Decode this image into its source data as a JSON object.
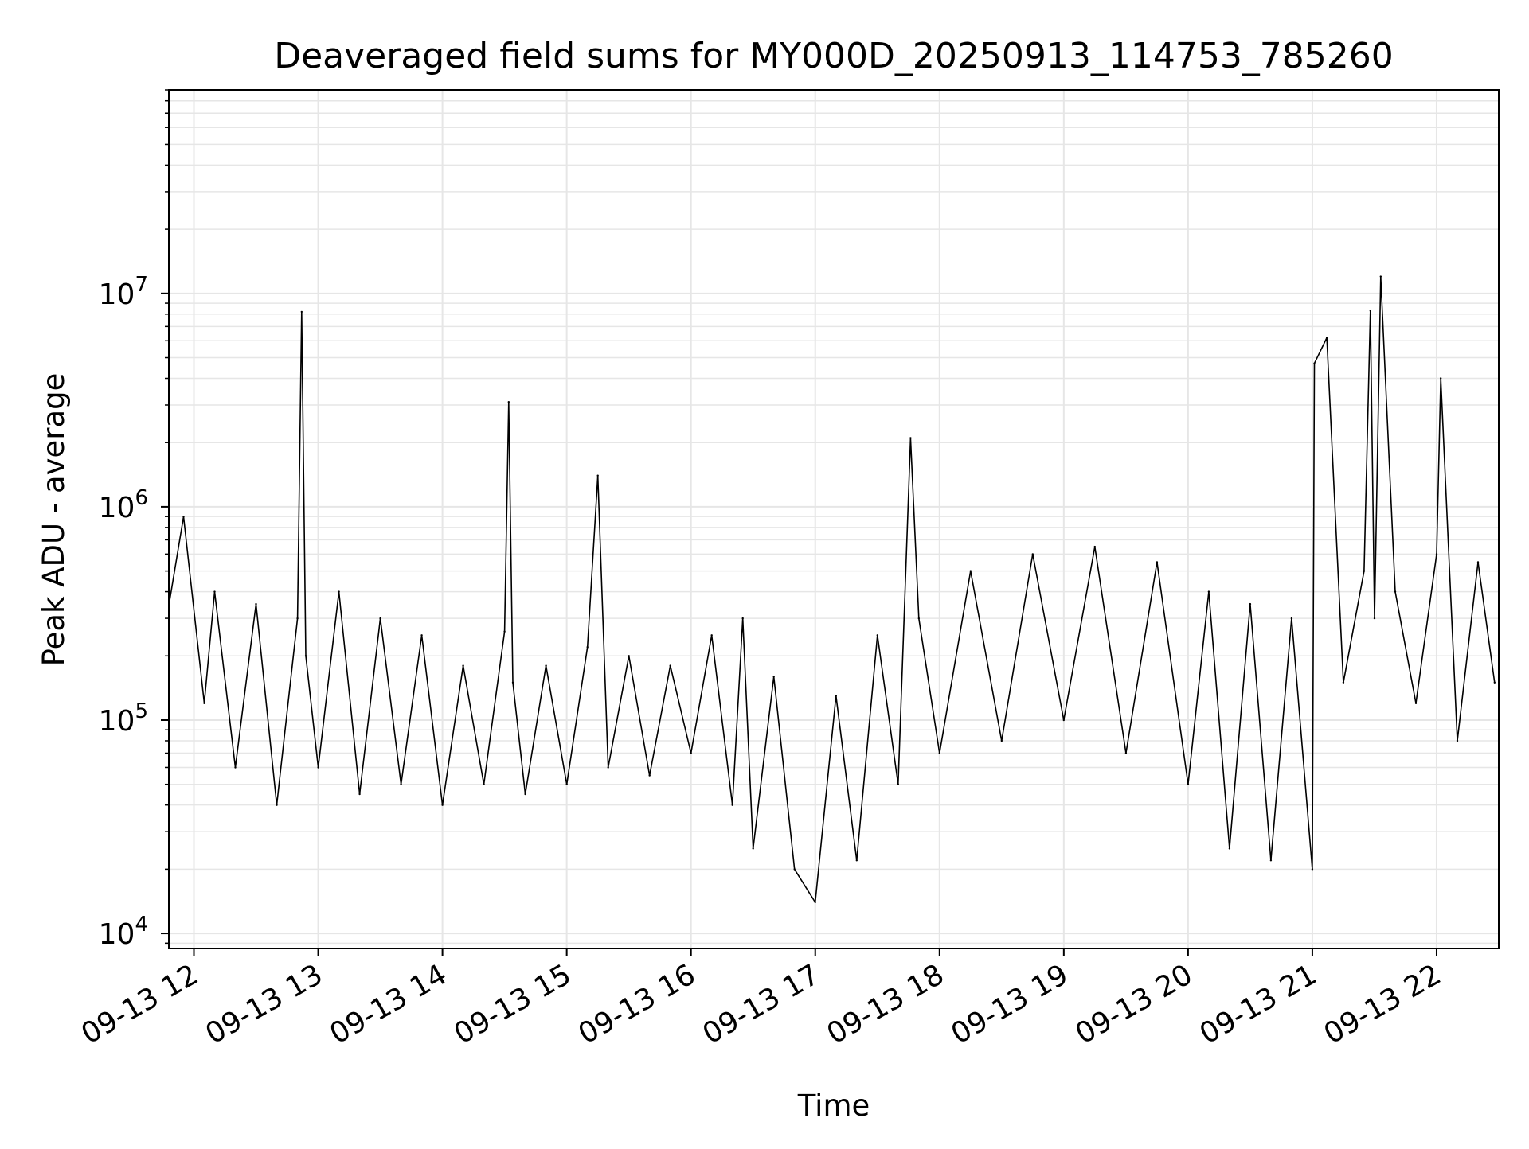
{
  "chart_data": {
    "type": "line",
    "title": "Deaveraged field sums for MY000D_20250913_114753_785260",
    "xlabel": "Time",
    "ylabel": "Peak ADU - average",
    "y_scale": "log",
    "ylim": [
      8500,
      90000000
    ],
    "xlim": [
      "2025-09-13T11:47:53",
      "2025-09-13T22:30:00"
    ],
    "grid": true,
    "grid_minor": true,
    "line_color": "#000000",
    "x_ticks": [
      {
        "t": "2025-09-13T12:00:00",
        "label": "09-13 12"
      },
      {
        "t": "2025-09-13T13:00:00",
        "label": "09-13 13"
      },
      {
        "t": "2025-09-13T14:00:00",
        "label": "09-13 14"
      },
      {
        "t": "2025-09-13T15:00:00",
        "label": "09-13 15"
      },
      {
        "t": "2025-09-13T16:00:00",
        "label": "09-13 16"
      },
      {
        "t": "2025-09-13T17:00:00",
        "label": "09-13 17"
      },
      {
        "t": "2025-09-13T18:00:00",
        "label": "09-13 18"
      },
      {
        "t": "2025-09-13T19:00:00",
        "label": "09-13 19"
      },
      {
        "t": "2025-09-13T20:00:00",
        "label": "09-13 20"
      },
      {
        "t": "2025-09-13T21:00:00",
        "label": "09-13 21"
      },
      {
        "t": "2025-09-13T22:00:00",
        "label": "09-13 22"
      }
    ],
    "y_ticks": [
      {
        "value": 10000,
        "base": "10",
        "exp": "4"
      },
      {
        "value": 100000,
        "base": "10",
        "exp": "5"
      },
      {
        "value": 1000000,
        "base": "10",
        "exp": "6"
      },
      {
        "value": 10000000,
        "base": "10",
        "exp": "7"
      }
    ],
    "series": [
      {
        "x": [
          "2025-09-13T11:48:00",
          "2025-09-13T11:55:00",
          "2025-09-13T12:05:00",
          "2025-09-13T12:10:00",
          "2025-09-13T12:20:00",
          "2025-09-13T12:30:00",
          "2025-09-13T12:40:00",
          "2025-09-13T12:50:00",
          "2025-09-13T12:52:00",
          "2025-09-13T12:54:00",
          "2025-09-13T13:00:00",
          "2025-09-13T13:10:00",
          "2025-09-13T13:20:00",
          "2025-09-13T13:30:00",
          "2025-09-13T13:40:00",
          "2025-09-13T13:50:00",
          "2025-09-13T14:00:00",
          "2025-09-13T14:10:00",
          "2025-09-13T14:20:00",
          "2025-09-13T14:30:00",
          "2025-09-13T14:32:00",
          "2025-09-13T14:34:00",
          "2025-09-13T14:40:00",
          "2025-09-13T14:50:00",
          "2025-09-13T15:00:00",
          "2025-09-13T15:10:00",
          "2025-09-13T15:15:00",
          "2025-09-13T15:20:00",
          "2025-09-13T15:30:00",
          "2025-09-13T15:40:00",
          "2025-09-13T15:50:00",
          "2025-09-13T16:00:00",
          "2025-09-13T16:10:00",
          "2025-09-13T16:20:00",
          "2025-09-13T16:25:00",
          "2025-09-13T16:30:00",
          "2025-09-13T16:40:00",
          "2025-09-13T16:50:00",
          "2025-09-13T17:00:00",
          "2025-09-13T17:10:00",
          "2025-09-13T17:20:00",
          "2025-09-13T17:30:00",
          "2025-09-13T17:40:00",
          "2025-09-13T17:46:00",
          "2025-09-13T17:50:00",
          "2025-09-13T18:00:00",
          "2025-09-13T18:15:00",
          "2025-09-13T18:30:00",
          "2025-09-13T18:45:00",
          "2025-09-13T19:00:00",
          "2025-09-13T19:15:00",
          "2025-09-13T19:30:00",
          "2025-09-13T19:45:00",
          "2025-09-13T20:00:00",
          "2025-09-13T20:10:00",
          "2025-09-13T20:20:00",
          "2025-09-13T20:30:00",
          "2025-09-13T20:40:00",
          "2025-09-13T20:50:00",
          "2025-09-13T21:00:00",
          "2025-09-13T21:01:00",
          "2025-09-13T21:07:00",
          "2025-09-13T21:15:00",
          "2025-09-13T21:25:00",
          "2025-09-13T21:28:00",
          "2025-09-13T21:30:00",
          "2025-09-13T21:33:00",
          "2025-09-13T21:40:00",
          "2025-09-13T21:50:00",
          "2025-09-13T22:00:00",
          "2025-09-13T22:02:00",
          "2025-09-13T22:10:00",
          "2025-09-13T22:20:00",
          "2025-09-13T22:28:00"
        ],
        "y": [
          350000,
          900000,
          120000,
          400000,
          60000,
          350000,
          40000,
          300000,
          8200000,
          200000,
          60000,
          400000,
          45000,
          300000,
          50000,
          250000,
          40000,
          180000,
          50000,
          260000,
          3100000,
          150000,
          45000,
          180000,
          50000,
          220000,
          1400000,
          60000,
          200000,
          55000,
          180000,
          70000,
          250000,
          40000,
          300000,
          25000,
          160000,
          20000,
          14000,
          130000,
          22000,
          250000,
          50000,
          2100000,
          300000,
          70000,
          500000,
          80000,
          600000,
          100000,
          650000,
          70000,
          550000,
          50000,
          400000,
          25000,
          350000,
          22000,
          300000,
          20000,
          4700000,
          6200000,
          150000,
          500000,
          8300000,
          300000,
          12000000,
          400000,
          120000,
          600000,
          4000000,
          80000,
          550000,
          150000
        ]
      }
    ]
  }
}
